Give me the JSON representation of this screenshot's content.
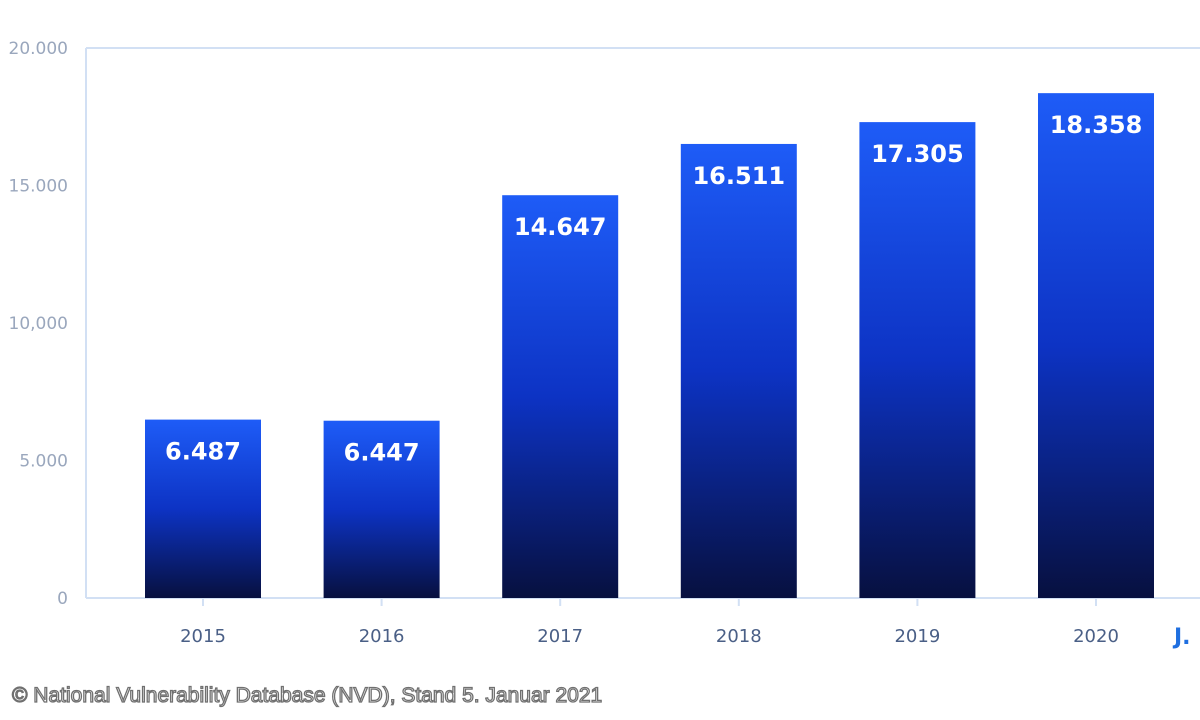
{
  "chart_data": {
    "type": "bar",
    "categories": [
      "2015",
      "2016",
      "2017",
      "2018",
      "2019",
      "2020"
    ],
    "values": [
      6487,
      6447,
      14647,
      16511,
      17305,
      18358
    ],
    "value_labels": [
      "6.487",
      "6.447",
      "14.647",
      "16.511",
      "17.305",
      "18.358"
    ],
    "y_ticks": [
      0,
      5000,
      10000,
      15000,
      20000
    ],
    "y_tick_labels": [
      "0",
      "5.000",
      "10,000",
      "15.000",
      "20.000"
    ],
    "ylim": [
      0,
      20000
    ],
    "x_unit_label": "J.",
    "grid": false,
    "colors": {
      "bar_top": "#1e5cf7",
      "bar_mid": "#0d33c4",
      "bar_bottom": "#07103f",
      "axis": "#d2e0f4",
      "tick_text_y": "#9aa7bd",
      "tick_text_x": "#4a5f86",
      "value_label": "#ffffff",
      "unit_label": "#1f6fe0"
    }
  },
  "caption": "© National Vulnerability Database (NVD), Stand 5. Januar 2021"
}
